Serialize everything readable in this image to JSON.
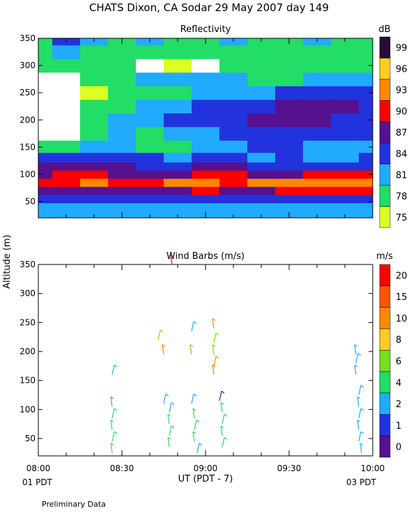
{
  "figure": {
    "title": "CHATS Dixon, CA  Sodar  29 May 2007  day 149",
    "ylabel": "Altitude (m)",
    "xlabel": "UT  (PDT - 7)",
    "footer_left": "01 PDT",
    "footer_right": "03 PDT",
    "note": "Preliminary Data"
  },
  "chart_data": [
    {
      "type": "heatmap",
      "title": "Reflectivity",
      "colorbar_label": "dB",
      "colorbar_ticks": [
        "75",
        "78",
        "81",
        "84",
        "87",
        "90",
        "93",
        "96",
        "99"
      ],
      "colorbar_colors": [
        "#ddff22",
        "#22dd66",
        "#22aaff",
        "#2233dd",
        "#55118f",
        "#ff0000",
        "#ff8800",
        "#ffcc22",
        "#2a0a3a"
      ],
      "x_ticks": [
        "08:00",
        "08:30",
        "09:00",
        "09:30",
        "10:00"
      ],
      "xlim": [
        0,
        120
      ],
      "ylim": [
        20,
        350
      ],
      "y_ticks": [
        50,
        100,
        150,
        200,
        250,
        300,
        350
      ],
      "x": [
        0,
        10,
        20,
        30,
        40,
        50,
        60,
        70,
        80,
        90,
        100,
        110,
        120
      ],
      "y": [
        40,
        55,
        70,
        85,
        100,
        115,
        130,
        150,
        175,
        200,
        225,
        250,
        275,
        300,
        325,
        350
      ],
      "z_level_index": [
        [
          2,
          2,
          2,
          2,
          2,
          2,
          2,
          2,
          2,
          2,
          2,
          2,
          2
        ],
        [
          3,
          3,
          3,
          3,
          3,
          3,
          3,
          3,
          3,
          3,
          3,
          3,
          3
        ],
        [
          4,
          4,
          4,
          4,
          4,
          4,
          5,
          4,
          4,
          5,
          5,
          5,
          5
        ],
        [
          5,
          5,
          6,
          5,
          5,
          6,
          6,
          5,
          6,
          6,
          6,
          6,
          6
        ],
        [
          4,
          5,
          5,
          4,
          4,
          4,
          5,
          5,
          4,
          4,
          5,
          5,
          5
        ],
        [
          4,
          4,
          4,
          4,
          3,
          3,
          4,
          4,
          3,
          3,
          3,
          3,
          3
        ],
        [
          3,
          3,
          3,
          3,
          3,
          2,
          3,
          3,
          2,
          3,
          2,
          2,
          3
        ],
        [
          1,
          1,
          2,
          2,
          1,
          1,
          2,
          2,
          3,
          3,
          2,
          2,
          2
        ],
        [
          0,
          0,
          1,
          2,
          1,
          2,
          2,
          3,
          3,
          3,
          3,
          3,
          3
        ],
        [
          0,
          0,
          1,
          2,
          2,
          3,
          3,
          3,
          4,
          4,
          4,
          3,
          3
        ],
        [
          0,
          0,
          1,
          1,
          2,
          2,
          3,
          3,
          3,
          4,
          4,
          4,
          3
        ],
        [
          0,
          0,
          0,
          1,
          1,
          1,
          2,
          2,
          2,
          3,
          3,
          3,
          3
        ],
        [
          0,
          0,
          1,
          1,
          2,
          2,
          2,
          2,
          1,
          1,
          2,
          2,
          2
        ],
        [
          1,
          1,
          1,
          1,
          0,
          0,
          0,
          1,
          1,
          1,
          1,
          1,
          1
        ],
        [
          1,
          2,
          1,
          1,
          1,
          1,
          1,
          1,
          1,
          1,
          1,
          1,
          1
        ],
        [
          1,
          3,
          2,
          1,
          2,
          1,
          1,
          2,
          1,
          1,
          2,
          1,
          1
        ]
      ],
      "level_values_dB": [
        75,
        78,
        81,
        84,
        87,
        90,
        93,
        96,
        99
      ],
      "white_region_note": "values below lowest level shown white"
    },
    {
      "type": "scatter",
      "title": "Wind Barbs (m/s)",
      "colorbar_label": "m/s",
      "colorbar_ticks": [
        "0",
        "1",
        "2",
        "4",
        "6",
        "8",
        "10",
        "15",
        "20"
      ],
      "colorbar_colors": [
        "#55118f",
        "#2233dd",
        "#22aaff",
        "#22dd66",
        "#77dd22",
        "#ffcc22",
        "#ff8800",
        "#ff5500",
        "#ff0000"
      ],
      "x_ticks": [
        "08:00",
        "08:30",
        "09:00",
        "09:30",
        "10:00"
      ],
      "xlim": [
        0,
        120
      ],
      "ylim": [
        20,
        350
      ],
      "y_ticks": [
        50,
        100,
        150,
        200,
        250,
        300,
        350
      ],
      "barbs": [
        {
          "t": 26.5,
          "alt": 160,
          "speed": 3
        },
        {
          "t": 26.5,
          "alt": 105,
          "speed": 3
        },
        {
          "t": 26.5,
          "alt": 85,
          "speed": 4
        },
        {
          "t": 26.5,
          "alt": 65,
          "speed": 4
        },
        {
          "t": 26.5,
          "alt": 45,
          "speed": 4
        },
        {
          "t": 26.5,
          "alt": 25,
          "speed": 4
        },
        {
          "t": 43,
          "alt": 220,
          "speed": 6
        },
        {
          "t": 45,
          "alt": 195,
          "speed": 10
        },
        {
          "t": 45,
          "alt": 110,
          "speed": 3
        },
        {
          "t": 48,
          "alt": 350,
          "speed": 20
        },
        {
          "t": 47,
          "alt": 95,
          "speed": 3
        },
        {
          "t": 47,
          "alt": 75,
          "speed": 4
        },
        {
          "t": 47,
          "alt": 55,
          "speed": 4
        },
        {
          "t": 47,
          "alt": 35,
          "speed": 4
        },
        {
          "t": 55,
          "alt": 235,
          "speed": 3
        },
        {
          "t": 55,
          "alt": 195,
          "speed": 6
        },
        {
          "t": 55,
          "alt": 110,
          "speed": 3
        },
        {
          "t": 56,
          "alt": 85,
          "speed": 4
        },
        {
          "t": 56,
          "alt": 65,
          "speed": 4
        },
        {
          "t": 56,
          "alt": 45,
          "speed": 4
        },
        {
          "t": 57,
          "alt": 25,
          "speed": 3
        },
        {
          "t": 63,
          "alt": 240,
          "speed": 10
        },
        {
          "t": 63,
          "alt": 215,
          "speed": 6
        },
        {
          "t": 63,
          "alt": 195,
          "speed": 6
        },
        {
          "t": 63,
          "alt": 175,
          "speed": 10
        },
        {
          "t": 63,
          "alt": 160,
          "speed": 10
        },
        {
          "t": 65,
          "alt": 115,
          "speed": 0
        },
        {
          "t": 66,
          "alt": 95,
          "speed": 4
        },
        {
          "t": 66,
          "alt": 75,
          "speed": 4
        },
        {
          "t": 66,
          "alt": 55,
          "speed": 4
        },
        {
          "t": 66,
          "alt": 35,
          "speed": 4
        },
        {
          "t": 114,
          "alt": 195,
          "speed": 3
        },
        {
          "t": 114,
          "alt": 180,
          "speed": 3
        },
        {
          "t": 114,
          "alt": 160,
          "speed": 3
        },
        {
          "t": 115,
          "alt": 125,
          "speed": 3
        },
        {
          "t": 115,
          "alt": 105,
          "speed": 3
        },
        {
          "t": 115,
          "alt": 85,
          "speed": 3
        },
        {
          "t": 115,
          "alt": 65,
          "speed": 3
        },
        {
          "t": 115,
          "alt": 45,
          "speed": 3
        },
        {
          "t": 116,
          "alt": 25,
          "speed": 3
        }
      ]
    }
  ]
}
